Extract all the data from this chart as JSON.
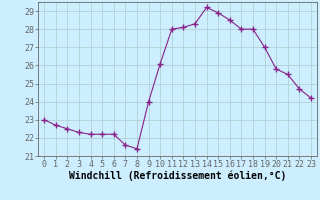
{
  "x": [
    0,
    1,
    2,
    3,
    4,
    5,
    6,
    7,
    8,
    9,
    10,
    11,
    12,
    13,
    14,
    15,
    16,
    17,
    18,
    19,
    20,
    21,
    22,
    23
  ],
  "y": [
    23.0,
    22.7,
    22.5,
    22.3,
    22.2,
    22.2,
    22.2,
    21.6,
    21.4,
    24.0,
    26.1,
    28.0,
    28.1,
    28.3,
    29.2,
    28.9,
    28.5,
    28.0,
    28.0,
    27.0,
    25.8,
    25.5,
    24.7,
    24.2
  ],
  "line_color": "#882288",
  "marker": "+",
  "marker_size": 4,
  "bg_color": "#cceeff",
  "grid_color": "#aacccc",
  "xlabel": "Windchill (Refroidissement éolien,°C)",
  "xlabel_fontsize": 7,
  "ylim": [
    21,
    29.5
  ],
  "xlim": [
    -0.5,
    23.5
  ],
  "yticks": [
    21,
    22,
    23,
    24,
    25,
    26,
    27,
    28,
    29
  ],
  "xticks": [
    0,
    1,
    2,
    3,
    4,
    5,
    6,
    7,
    8,
    9,
    10,
    11,
    12,
    13,
    14,
    15,
    16,
    17,
    18,
    19,
    20,
    21,
    22,
    23
  ],
  "tick_fontsize": 6,
  "spine_color": "#666666",
  "line_width": 0.8
}
